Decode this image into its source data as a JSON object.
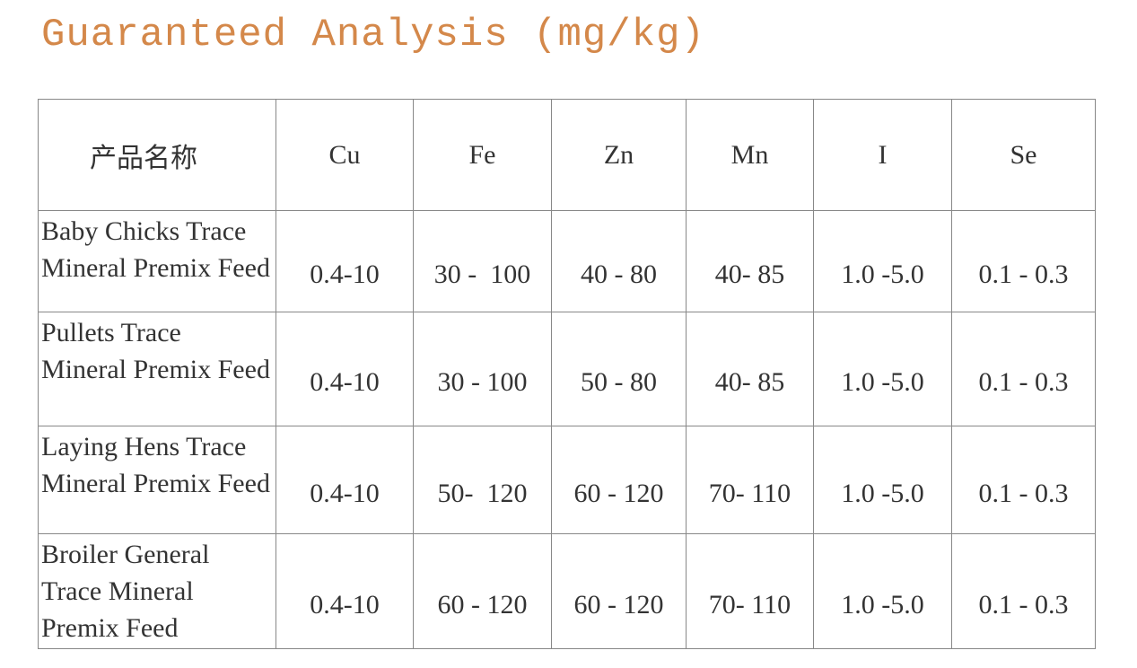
{
  "header": {
    "title": "Guaranteed Analysis (mg/kg)"
  },
  "table": {
    "columns": [
      "产品名称",
      "Cu",
      "Fe",
      "Zn",
      "Mn",
      "I",
      "Se"
    ],
    "rows": [
      [
        "Baby Chicks Trace Mineral Premix Feed",
        "0.4-10",
        "30 -  100",
        "40 - 80",
        "40- 85",
        "1.0 -5.0",
        "0.1 - 0.3"
      ],
      [
        "Pullets Trace Mineral Premix Feed",
        "0.4-10",
        "30 - 100",
        "50 - 80",
        "40- 85",
        "1.0 -5.0",
        "0.1 - 0.3"
      ],
      [
        "Laying Hens Trace Mineral Premix Feed",
        "0.4-10",
        "50-  120",
        "60 - 120",
        "70- 110",
        "1.0 -5.0",
        "0.1 - 0.3"
      ],
      [
        "Broiler General Trace Mineral Premix Feed",
        "0.4-10",
        "60 - 120",
        "60 - 120",
        "70- 110",
        "1.0 -5.0",
        "0.1 - 0.3"
      ]
    ]
  }
}
